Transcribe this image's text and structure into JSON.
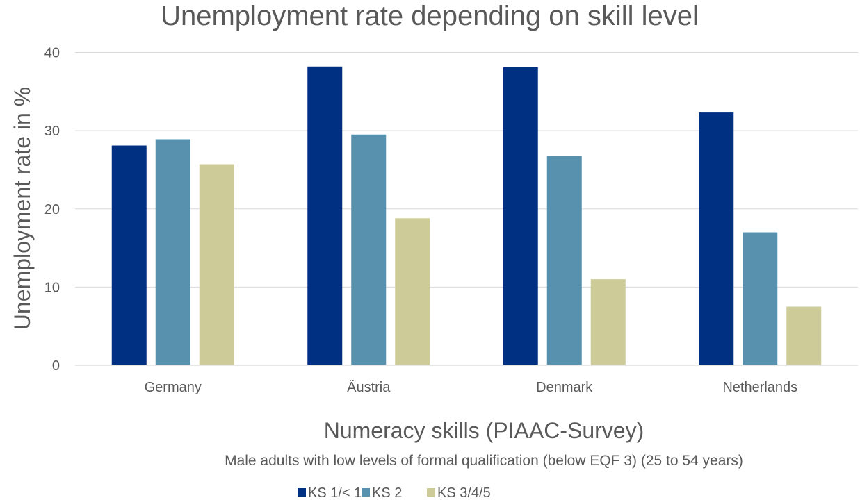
{
  "chart_data": {
    "type": "bar",
    "title": "Unemployment rate depending on skill level",
    "xlabel": "Numeracy skills (PIAAC-Survey)",
    "subtitle": "Male adults with low levels of formal qualification (below EQF 3) (25 to 54 years)",
    "ylabel": "Unemployment rate in %",
    "categories": [
      "Germany",
      "Äustria",
      "Denmark",
      "Netherlands"
    ],
    "series": [
      {
        "name": "KS 1/< 1",
        "color": "#003082",
        "values": [
          28.1,
          38.2,
          38.1,
          32.4
        ]
      },
      {
        "name": "KS 2",
        "color": "#5791ad",
        "values": [
          28.9,
          29.5,
          26.8,
          17.0
        ]
      },
      {
        "name": "KS 3/4/5",
        "color": "#cdcc98",
        "values": [
          25.7,
          18.8,
          11.0,
          7.5
        ]
      }
    ],
    "ylim": [
      0,
      40
    ],
    "yticks": [
      0,
      10,
      20,
      30,
      40
    ],
    "grid": true,
    "legend_position": "bottom"
  }
}
